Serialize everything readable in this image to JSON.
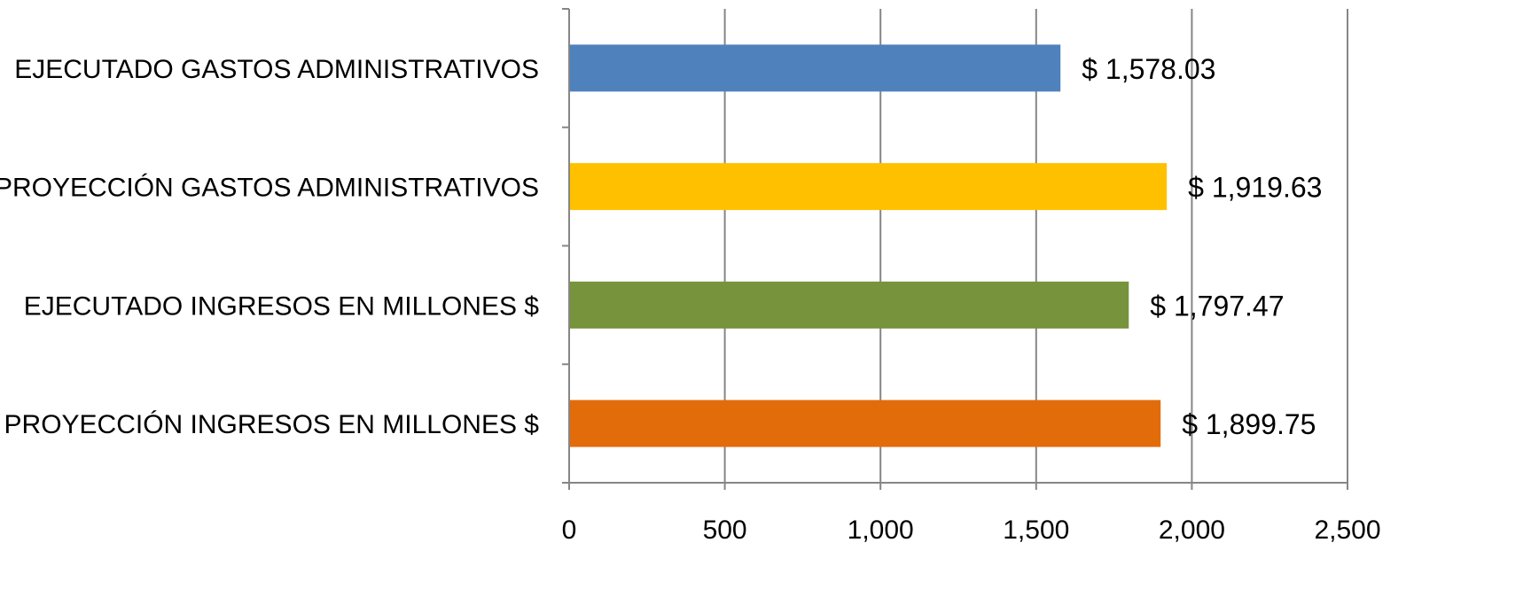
{
  "chart_data": {
    "type": "bar",
    "orientation": "horizontal",
    "categories": [
      "EJECUTADO GASTOS ADMINISTRATIVOS",
      "PROYECCIÓN GASTOS ADMINISTRATIVOS",
      "EJECUTADO INGRESOS EN MILLONES $",
      "PROYECCIÓN INGRESOS EN MILLONES $"
    ],
    "values": [
      1578.03,
      1919.63,
      1797.47,
      1899.75
    ],
    "data_labels": [
      "$ 1,578.03",
      "$ 1,919.63",
      "$ 1,797.47",
      "$ 1,899.75"
    ],
    "colors": [
      "#4f81bd",
      "#ffc000",
      "#77933c",
      "#e36c0a"
    ],
    "xlim": [
      0,
      2500
    ],
    "xticks": [
      0,
      500,
      1000,
      1500,
      2000,
      2500
    ],
    "xtick_labels": [
      "0",
      "500",
      "1,000",
      "1,500",
      "2,000",
      "2,500"
    ],
    "grid": "vertical",
    "title": "",
    "xlabel": "",
    "ylabel": "",
    "legend": "none"
  }
}
